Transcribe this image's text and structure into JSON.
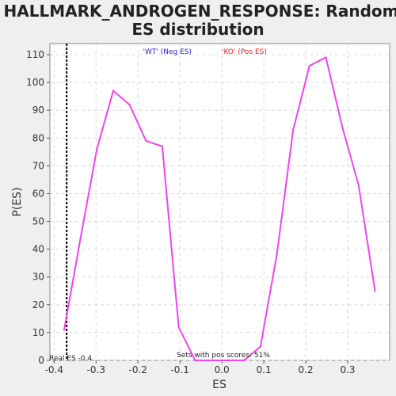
{
  "chart_data": {
    "type": "line",
    "title_lines": [
      "HALLMARK_ANDROGEN_RESPONSE: Random",
      "ES distribution"
    ],
    "xlabel": "ES",
    "ylabel": "P(ES)",
    "xlim": [
      -0.41,
      0.4
    ],
    "ylim": [
      0,
      114
    ],
    "x_ticks": [
      -0.4,
      -0.3,
      -0.2,
      -0.1,
      0.0,
      0.1,
      0.2,
      0.3
    ],
    "x_tick_labels": [
      "-0.4",
      "-0.3",
      "-0.2",
      "-0.1",
      "0.0",
      "0.1",
      "0.2",
      "0.3"
    ],
    "y_ticks": [
      0,
      10,
      20,
      30,
      40,
      50,
      60,
      70,
      80,
      90,
      100,
      110
    ],
    "y_tick_labels": [
      "0",
      "10",
      "20",
      "30",
      "40",
      "50",
      "60",
      "70",
      "80",
      "90",
      "100",
      "110"
    ],
    "grid": true,
    "series": [
      {
        "color": "#ee44ee",
        "x": [
          -0.376,
          -0.337,
          -0.298,
          -0.259,
          -0.22,
          -0.181,
          -0.142,
          -0.103,
          -0.064,
          -0.025,
          0.014,
          0.053,
          0.092,
          0.131,
          0.17,
          0.209,
          0.248,
          0.287,
          0.326,
          0.365
        ],
        "y": [
          11,
          44,
          76,
          97,
          92,
          79,
          77,
          12,
          0,
          0,
          0,
          0,
          5,
          38,
          83,
          106,
          109,
          84,
          63,
          25
        ]
      }
    ],
    "real_es": {
      "value": -0.37,
      "label": "Real ES -0.4"
    },
    "legend": {
      "placement": "top-center",
      "neg": {
        "text": "'WT' (Neg ES)",
        "color": "#2222cc"
      },
      "pos": {
        "text": "'KO' (Pos ES)",
        "color": "#dd2222"
      }
    },
    "annotation": "Sets with pos scores: 51%"
  }
}
